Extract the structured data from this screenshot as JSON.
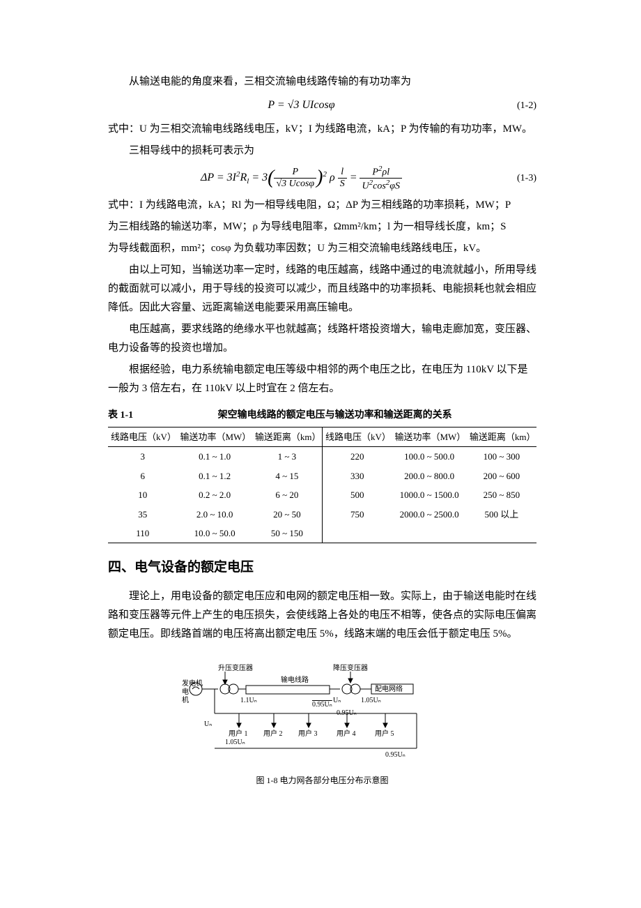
{
  "intro": "从输送电能的角度来看，三相交流输电线路传输的有功功率为",
  "eq1": {
    "formula_text": "P = √3 UIcosφ",
    "num": "(1-2)"
  },
  "eq1_expl": "式中：U 为三相交流输电线路线电压，kV；I 为线路电流，kA；P 为传输的有功功率，MW。",
  "loss_intro": "三相导线中的损耗可表示为",
  "eq2": {
    "num": "(1-3)"
  },
  "eq2_expl1": "式中：I 为线路电流，kA；Rl 为一相导线电阻，Ω；ΔP 为三相线路的功率损耗，MW；P",
  "eq2_expl2": "为三相线路的输送功率，MW；ρ 为导线电阻率，Ωmm²/km；l 为一相导线长度，km；S",
  "eq2_expl3": "为导线截面积，mm²；cosφ 为负载功率因数；U 为三相交流输电线路线电压，kV。",
  "p1": "由以上可知，当输送功率一定时，线路的电压越高，线路中通过的电流就越小，所用导线的截面就可以减小，用于导线的投资可以减少，而且线路中的功率损耗、电能损耗也就会相应降低。因此大容量、远距离输送电能要采用高压输电。",
  "p2": "电压越高，要求线路的绝缘水平也就越高；线路杆塔投资增大，输电走廊加宽，变压器、电力设备等的投资也增加。",
  "p3": "根据经验，电力系统输电额定电压等级中相邻的两个电压之比，在电压为 110kV 以下是一般为 3 倍左右，在 110kV 以上时宜在 2 倍左右。",
  "table": {
    "label": "表 1-1",
    "caption": "架空输电线路的额定电压与输送功率和输送距离的关系",
    "columns": [
      "线路电压（kV）",
      "输送功率（MW）",
      "输送距离（km）",
      "线路电压（kV）",
      "输送功率（MW）",
      "输送距离（km）"
    ],
    "rows": [
      [
        "3",
        "0.1 ~ 1.0",
        "1 ~ 3",
        "220",
        "100.0 ~ 500.0",
        "100 ~ 300"
      ],
      [
        "6",
        "0.1 ~ 1.2",
        "4 ~ 15",
        "330",
        "200.0 ~ 800.0",
        "200 ~ 600"
      ],
      [
        "10",
        "0.2 ~ 2.0",
        "6 ~ 20",
        "500",
        "1000.0 ~ 1500.0",
        "250 ~ 850"
      ],
      [
        "35",
        "2.0 ~ 10.0",
        "20 ~ 50",
        "750",
        "2000.0 ~ 2500.0",
        "500 以上"
      ],
      [
        "110",
        "10.0 ~ 50.0",
        "50 ~ 150",
        "",
        "",
        ""
      ]
    ]
  },
  "section4": "四、电气设备的额定电压",
  "p4": "理论上，用电设备的额定电压应和电网的额定电压相一致。实际上，由于输送电能时在线路和变压器等元件上产生的电压损失，会使线路上各处的电压不相等，使各点的实际电压偏离额定电压。即线路首端的电压将高出额定电压 5%，线路末端的电压会低于额定电压 5%。",
  "fig": {
    "labels": {
      "gen": "发电机",
      "step_up": "升压变压器",
      "line": "输电线路",
      "step_down": "降压变压器",
      "dist": "配电网络",
      "u11": "1.1Uₙ",
      "un": "Uₙ",
      "u095": "0.95Uₙ",
      "u095b": "0.95Uₙ",
      "u095c": "0.95Uₙ",
      "u105b": "1.05Uₙ",
      "u105": "1.05Uₙ",
      "user1": "用户 1",
      "user2": "用户 2",
      "user3": "用户 3",
      "user4": "用户 4",
      "user5": "用户 5"
    },
    "caption": "图 1-8  电力网各部分电压分布示意图"
  }
}
